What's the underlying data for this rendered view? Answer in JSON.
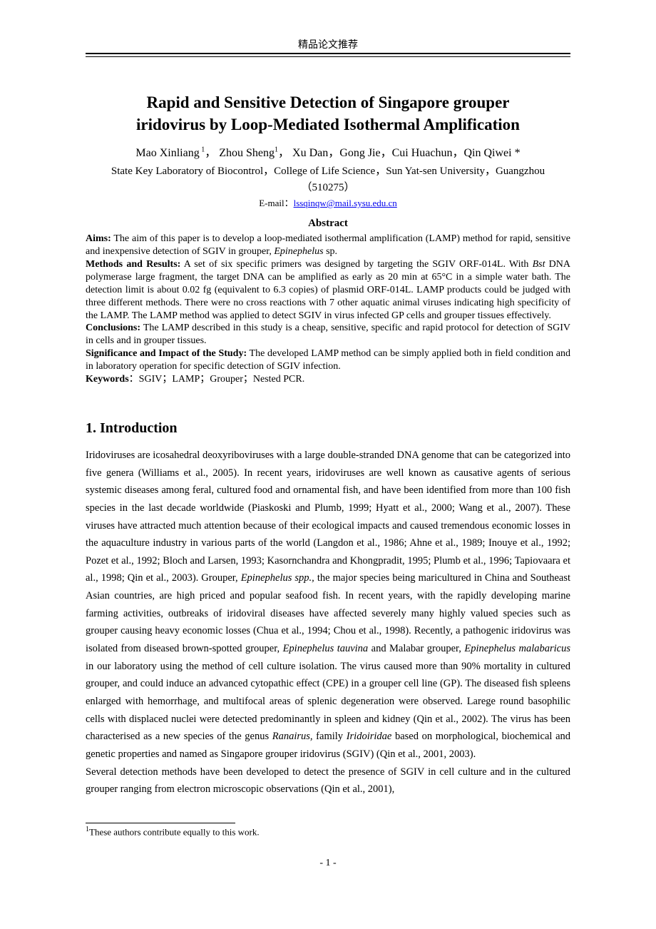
{
  "header": {
    "label": "精品论文推荐"
  },
  "title_line1": "Rapid and Sensitive Detection of Singapore grouper",
  "title_line2": "iridovirus by Loop-Mediated Isothermal Amplification",
  "authors": {
    "a1": "Mao Xinliang",
    "a2": "Zhou Sheng",
    "a3": "Xu Dan",
    "a4": "Gong Jie",
    "a5": "Cui Huachun",
    "a6": "Qin Qiwei *"
  },
  "affiliation": {
    "line1": "State Key Laboratory of Biocontrol，College of Life Science，Sun Yat-sen University，Guangzhou",
    "line2": "（510275）"
  },
  "email": {
    "prefix": "E-mail：",
    "address": "lssqinqw@mail.sysu.edu.cn"
  },
  "abstract": {
    "heading": "Abstract",
    "aims_label": "Aims:",
    "aims_text_1": " The aim of this paper is to develop a loop-mediated isothermal amplification (LAMP) method for rapid, sensitive and inexpensive detection of SGIV in grouper, ",
    "aims_italic": "Epinephelus",
    "aims_text_2": " sp.",
    "methods_label": "Methods and Results:",
    "methods_text_1": "   A set of six specific primers was designed by targeting the SGIV ORF-014L. With ",
    "methods_italic": "Bst",
    "methods_text_2": " DNA polymerase large fragment, the target DNA can be amplified as early as 20 min at 65°C in a simple water bath. The detection limit is about 0.02 fg (equivalent to 6.3 copies) of plasmid ORF-014L. LAMP products could be judged with three different methods. There were no cross reactions with 7 other aquatic animal viruses indicating high specificity of the LAMP. The LAMP method was applied to detect SGIV in virus infected GP cells and grouper tissues effectively.",
    "conclusions_label": "Conclusions:",
    "conclusions_text": " The LAMP described in this study is a cheap, sensitive, specific and rapid protocol for detection of SGIV in cells and in grouper tissues.",
    "significance_label": "Significance and Impact of the Study:",
    "significance_text": " The developed LAMP method can be simply applied both in field condition and in laboratory operation for specific detection of SGIV infection.",
    "keywords_label": "Keywords",
    "keywords_text": "：SGIV；LAMP；Grouper；Nested PCR."
  },
  "section1": {
    "heading": "1. Introduction",
    "p1a": "Iridoviruses are icosahedral deoxyriboviruses with a large double-stranded DNA genome that can be categorized into five genera (Williams et al., 2005). In recent years, iridoviruses are well known as causative agents of serious systemic diseases among feral, cultured food and ornamental fish, and have been identified from more than 100 fish species in the last decade worldwide (Piaskoski and Plumb, 1999; Hyatt et al., 2000; Wang et al., 2007). These viruses have attracted much attention because of their ecological impacts and caused tremendous economic losses in the aquaculture industry in various parts of the world (Langdon et al., 1986; Ahne et al., 1989; Inouye et al., 1992; Pozet et al., 1992; Bloch and Larsen, 1993; Kasornchandra and Khongpradit, 1995; Plumb et al., 1996; Tapiovaara et al., 1998; Qin et al., 2003). Grouper, ",
    "p1_i1": "Epinephelus spp.,",
    "p1b": " the major species being maricultured in China and Southeast Asian countries, are high priced and popular seafood fish. In recent years, with the rapidly developing marine farming activities, outbreaks of iridoviral diseases have affected severely many highly valued species such as grouper causing heavy economic losses (Chua et al., 1994; Chou et al., 1998). Recently, a pathogenic iridovirus was isolated from diseased brown-spotted grouper, ",
    "p1_i2": "Epinephelus tauvina",
    "p1c": " and Malabar grouper, ",
    "p1_i3": "Epinephelus malabaricus",
    "p1d": " in our laboratory using the method of cell culture isolation. The virus caused more than 90% mortality in cultured grouper, and could induce an advanced cytopathic effect (CPE) in a grouper cell line (GP). The diseased fish spleens enlarged with hemorrhage, and multifocal areas of splenic degeneration were observed. Larege round basophilic cells with displaced nuclei were detected predominantly in spleen and kidney (Qin et al., 2002). The virus has been characterised as a new species of the genus ",
    "p1_i4": "Ranairus",
    "p1e": ", family ",
    "p1_i5": "Iridoiridae",
    "p1f": " based on morphological, biochemical and genetic properties and named as Singapore grouper iridovirus (SGIV) (Qin et al., 2001, 2003).",
    "p2": "Several detection methods have been developed to detect the presence of SGIV in cell culture and in the cultured grouper ranging from electron microscopic observations (Qin et al., 2001),"
  },
  "footnote": {
    "marker": "1",
    "text": "These authors contribute equally to this work."
  },
  "page_number": "- 1 -"
}
